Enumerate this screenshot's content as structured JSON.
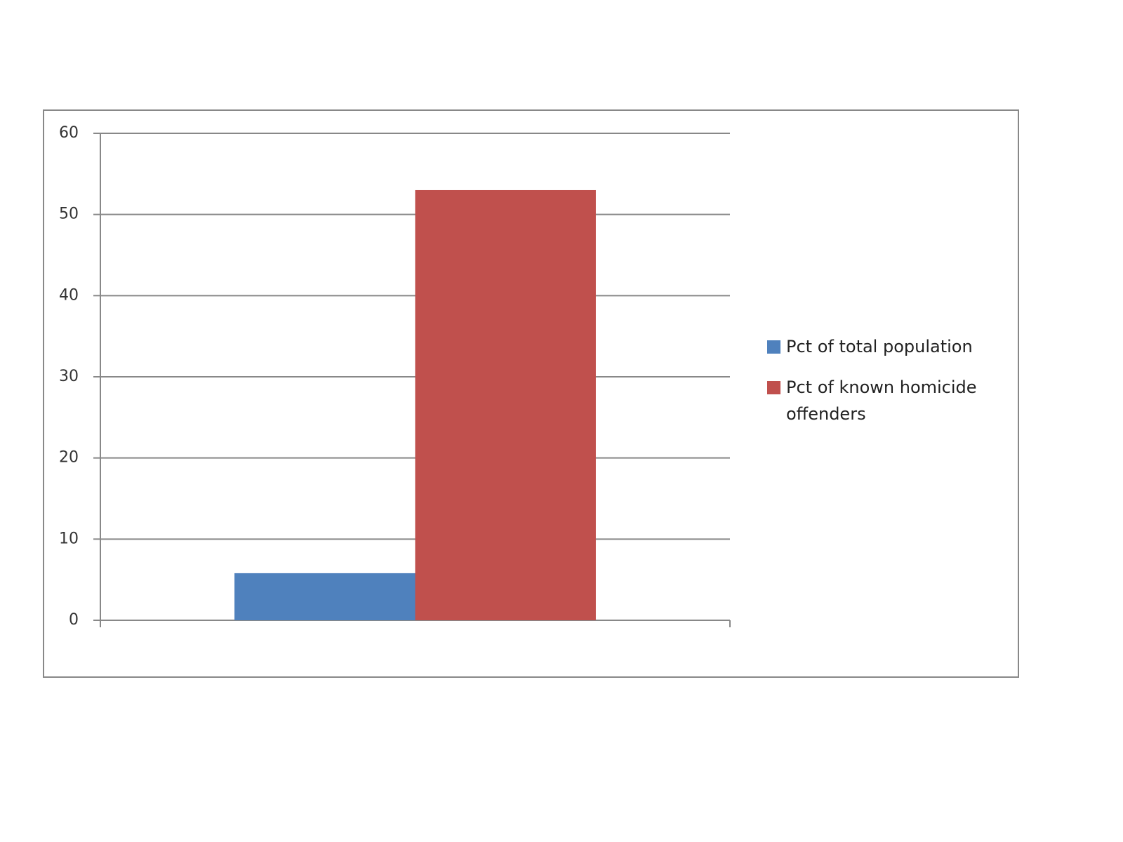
{
  "chart_data": {
    "type": "bar",
    "categories": [
      null
    ],
    "series": [
      {
        "name": "Pct of total population",
        "color": "#4f81bd",
        "values": [
          5.8
        ]
      },
      {
        "name": "Pct of known homicide offenders",
        "color": "#c0504d",
        "values": [
          53
        ]
      }
    ],
    "ylim": [
      0,
      60
    ],
    "yticks": [
      0,
      10,
      20,
      30,
      40,
      50,
      60
    ],
    "grid": true,
    "legend": "right"
  }
}
